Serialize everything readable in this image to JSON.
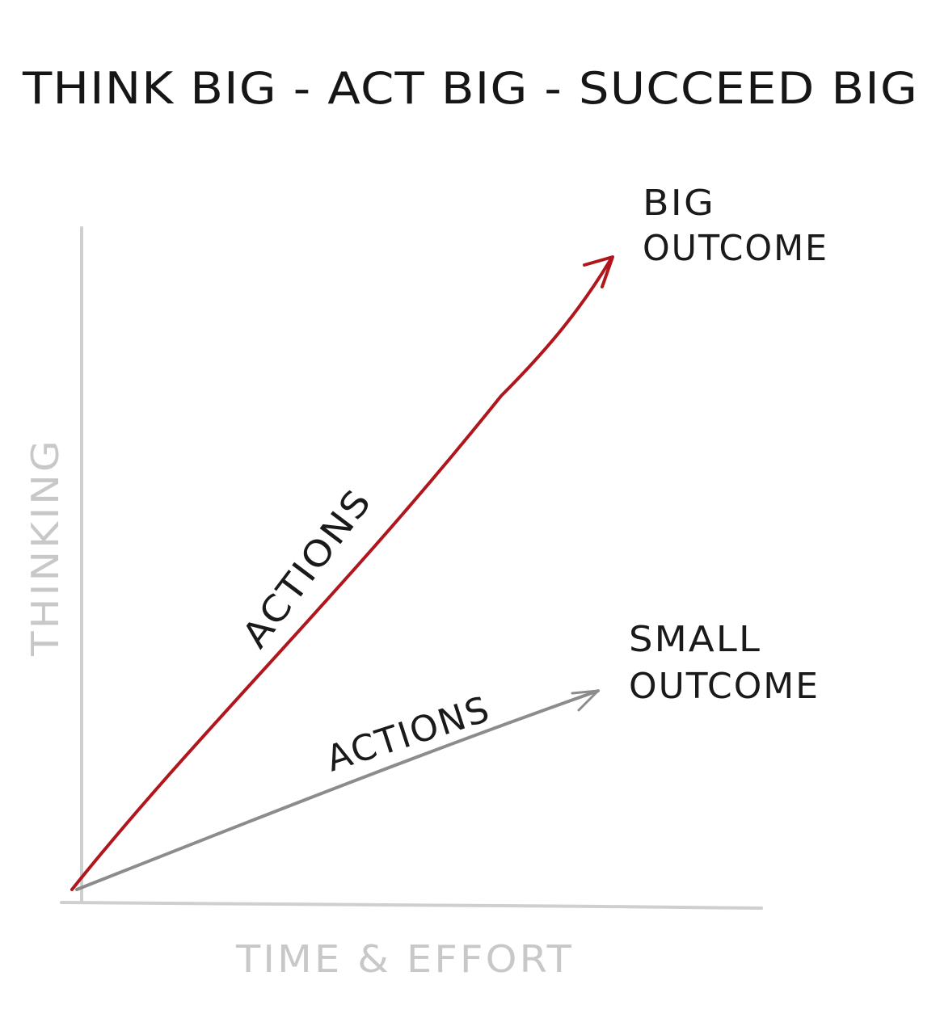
{
  "title": "THINK BIG - ACT BIG - SUCCEED BIG",
  "axes": {
    "y_label": "THINKING",
    "x_label": "TIME & EFFORT"
  },
  "paths": [
    {
      "id": "big",
      "action_label": "ACTIONS",
      "outcome_line1": "BIG",
      "outcome_line2": "OUTCOME",
      "color": "#b0161c"
    },
    {
      "id": "small",
      "action_label": "ACTIONS",
      "outcome_line1": "SMALL",
      "outcome_line2": "OUTCOME",
      "color": "#8c8c8c"
    }
  ],
  "colors": {
    "axis": "#cfcfcf",
    "ink": "#1a1a1a",
    "axis_label": "#c8c8c8"
  }
}
